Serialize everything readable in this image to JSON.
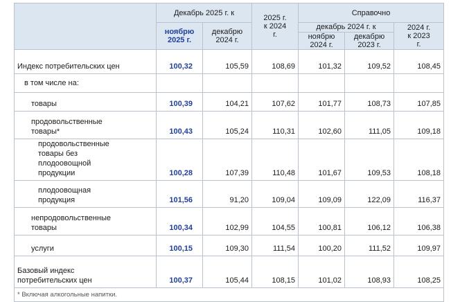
{
  "header": {
    "group_dec2025": "Декабрь 2025 г. к",
    "col_nov2025": "ноябрю 2025 г.",
    "col_dec2024": "декабрю 2024 г.",
    "col_2025_2024": "2025 г. к 2024 г.",
    "group_reference": "Справочно",
    "subgroup_dec2024": "декабрь 2024 г. к",
    "col_nov2024": "ноябрю 2024 г.",
    "col_dec2023": "декабрю 2023 г.",
    "col_2024_2023": "2024 г. к 2023 г."
  },
  "rows": [
    {
      "label": "Индекс потребительских цен",
      "values": [
        "100,32",
        "105,59",
        "108,69",
        "101,32",
        "109,52",
        "108,45"
      ]
    },
    {
      "label": "в том числе на:",
      "values": [
        "",
        "",
        "",
        "",
        "",
        ""
      ]
    },
    {
      "label": "товары",
      "values": [
        "100,39",
        "104,21",
        "107,62",
        "101,77",
        "108,73",
        "107,85"
      ]
    },
    {
      "label": "продовольственные товары*",
      "values": [
        "100,43",
        "105,24",
        "110,31",
        "102,60",
        "111,05",
        "109,18"
      ]
    },
    {
      "label": "продовольственные товары без плодоовощной продукции",
      "values": [
        "100,28",
        "107,39",
        "110,48",
        "101,67",
        "109,53",
        "108,18"
      ]
    },
    {
      "label": "плодоовощная продукция",
      "values": [
        "101,56",
        "91,20",
        "109,04",
        "109,09",
        "122,09",
        "116,37"
      ]
    },
    {
      "label": "непродовольственные товары",
      "values": [
        "100,34",
        "102,99",
        "104,55",
        "100,81",
        "106,12",
        "106,38"
      ]
    },
    {
      "label": "услуги",
      "values": [
        "100,15",
        "109,30",
        "111,54",
        "100,20",
        "111,52",
        "109,97"
      ]
    },
    {
      "label": "Базовый индекс потребительских цен",
      "values": [
        "100,37",
        "105,44",
        "108,15",
        "101,02",
        "108,93",
        "108,25"
      ]
    }
  ],
  "footnote": "* Включая алкогольные напитки."
}
